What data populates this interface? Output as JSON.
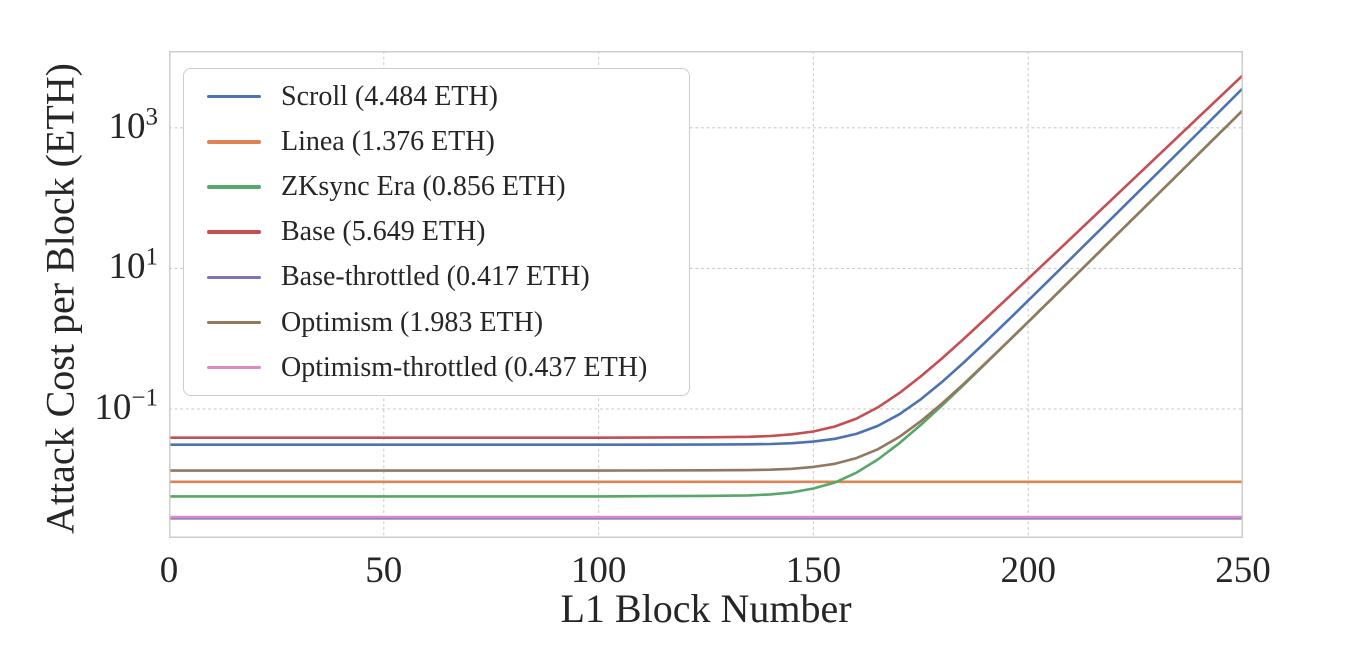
{
  "chart_data": {
    "type": "line",
    "title": "",
    "xlabel": "L1 Block Number",
    "ylabel": "Attack Cost per Block (ETH)",
    "y_scale": "log",
    "grid": "dashed",
    "legend_position": "upper-left",
    "xlim": [
      0,
      250
    ],
    "ylim": [
      0.00146,
      12400
    ],
    "x_ticks": [
      0,
      50,
      100,
      150,
      200,
      250
    ],
    "y_ticks": [
      {
        "base": "10",
        "exp": "3",
        "value": 1000
      },
      {
        "base": "10",
        "exp": "1",
        "value": 10
      },
      {
        "base": "10",
        "exp": "−1",
        "value": 0.1
      }
    ],
    "grid_x_values": [
      50,
      100,
      150,
      200,
      250
    ],
    "axis_color": "#cccccc",
    "text_color": "#262626",
    "series": [
      {
        "name": "scroll",
        "legend_label": "Scroll (4.484 ETH)",
        "color": "#4C72B0",
        "points": [
          [
            0,
            0.031
          ],
          [
            25,
            0.031
          ],
          [
            50,
            0.031
          ],
          [
            75,
            0.031
          ],
          [
            100,
            0.031
          ],
          [
            125,
            0.0311
          ],
          [
            135,
            0.0314
          ],
          [
            140,
            0.0318
          ],
          [
            145,
            0.0326
          ],
          [
            150,
            0.0343
          ],
          [
            155,
            0.0376
          ],
          [
            160,
            0.0442
          ],
          [
            165,
            0.0574
          ],
          [
            170,
            0.084
          ],
          [
            175,
            0.1373
          ],
          [
            180,
            0.2442
          ],
          [
            185,
            0.4586
          ],
          [
            190,
            0.8886
          ],
          [
            195,
            1.751
          ],
          [
            200,
            3.481
          ],
          [
            210,
            13.91
          ],
          [
            220,
            55.85
          ],
          [
            230,
            224.5
          ],
          [
            240,
            902.9
          ],
          [
            250,
            3680
          ]
        ]
      },
      {
        "name": "linea",
        "legend_label": "Linea (1.376 ETH)",
        "color": "#DD8452",
        "points": [
          [
            0,
            0.0092
          ],
          [
            50,
            0.0092
          ],
          [
            100,
            0.0092
          ],
          [
            150,
            0.0092
          ],
          [
            200,
            0.0092
          ],
          [
            250,
            0.0092
          ]
        ]
      },
      {
        "name": "zksync-era",
        "legend_label": "ZKsync Era (0.856 ETH)",
        "color": "#55A868",
        "points": [
          [
            0,
            0.0057
          ],
          [
            25,
            0.0057
          ],
          [
            50,
            0.0057
          ],
          [
            75,
            0.0057
          ],
          [
            100,
            0.0057
          ],
          [
            125,
            0.0058
          ],
          [
            135,
            0.0059
          ],
          [
            140,
            0.0061
          ],
          [
            145,
            0.0065
          ],
          [
            150,
            0.0074
          ],
          [
            155,
            0.009
          ],
          [
            160,
            0.0124
          ],
          [
            165,
            0.0191
          ],
          [
            170,
            0.0325
          ],
          [
            175,
            0.0594
          ],
          [
            180,
            0.1131
          ],
          [
            185,
            0.2207
          ],
          [
            190,
            0.4361
          ],
          [
            195,
            0.8672
          ],
          [
            200,
            1.73
          ],
          [
            210,
            6.917
          ],
          [
            220,
            27.69
          ],
          [
            230,
            110.9
          ],
          [
            240,
            444.6
          ],
          [
            250,
            1790
          ]
        ]
      },
      {
        "name": "base",
        "legend_label": "Base (5.649 ETH)",
        "color": "#C44E52",
        "points": [
          [
            0,
            0.039
          ],
          [
            25,
            0.039
          ],
          [
            50,
            0.039
          ],
          [
            75,
            0.039
          ],
          [
            100,
            0.039
          ],
          [
            125,
            0.0396
          ],
          [
            135,
            0.0402
          ],
          [
            140,
            0.0413
          ],
          [
            145,
            0.0436
          ],
          [
            150,
            0.0479
          ],
          [
            155,
            0.0564
          ],
          [
            160,
            0.0729
          ],
          [
            165,
            0.1052
          ],
          [
            170,
            0.168
          ],
          [
            175,
            0.2906
          ],
          [
            180,
            0.5296
          ],
          [
            185,
            0.9957
          ],
          [
            190,
            1.905
          ],
          [
            195,
            3.678
          ],
          [
            200,
            7.135
          ],
          [
            210,
            26.99
          ],
          [
            220,
            102.7
          ],
          [
            230,
            390.5
          ],
          [
            240,
            1485
          ],
          [
            250,
            5630
          ]
        ]
      },
      {
        "name": "base-throttled",
        "legend_label": "Base-throttled (0.417 ETH)",
        "color": "#8172B3",
        "points": [
          [
            0,
            0.00278
          ],
          [
            50,
            0.00278
          ],
          [
            100,
            0.00278
          ],
          [
            150,
            0.00278
          ],
          [
            200,
            0.00278
          ],
          [
            250,
            0.00278
          ]
        ]
      },
      {
        "name": "optimism",
        "legend_label": "Optimism (1.983 ETH)",
        "color": "#937860",
        "points": [
          [
            0,
            0.0133
          ],
          [
            25,
            0.0133
          ],
          [
            50,
            0.0133
          ],
          [
            75,
            0.0133
          ],
          [
            100,
            0.0133
          ],
          [
            125,
            0.0134
          ],
          [
            135,
            0.0135
          ],
          [
            140,
            0.0137
          ],
          [
            145,
            0.0141
          ],
          [
            150,
            0.015
          ],
          [
            155,
            0.0166
          ],
          [
            160,
            0.02
          ],
          [
            165,
            0.0267
          ],
          [
            170,
            0.0401
          ],
          [
            175,
            0.067
          ],
          [
            180,
            0.1207
          ],
          [
            185,
            0.2283
          ],
          [
            190,
            0.4437
          ],
          [
            195,
            0.8748
          ],
          [
            200,
            1.738
          ],
          [
            210,
            6.924
          ],
          [
            220,
            27.7
          ],
          [
            230,
            110.9
          ],
          [
            240,
            444.6
          ],
          [
            250,
            1790
          ]
        ]
      },
      {
        "name": "optimism-throttled",
        "legend_label": "Optimism-throttled (0.437 ETH)",
        "color": "#DA8BC3",
        "points": [
          [
            0,
            0.0029
          ],
          [
            50,
            0.0029
          ],
          [
            100,
            0.0029
          ],
          [
            150,
            0.0029
          ],
          [
            200,
            0.0029
          ],
          [
            250,
            0.0029
          ]
        ]
      }
    ]
  }
}
